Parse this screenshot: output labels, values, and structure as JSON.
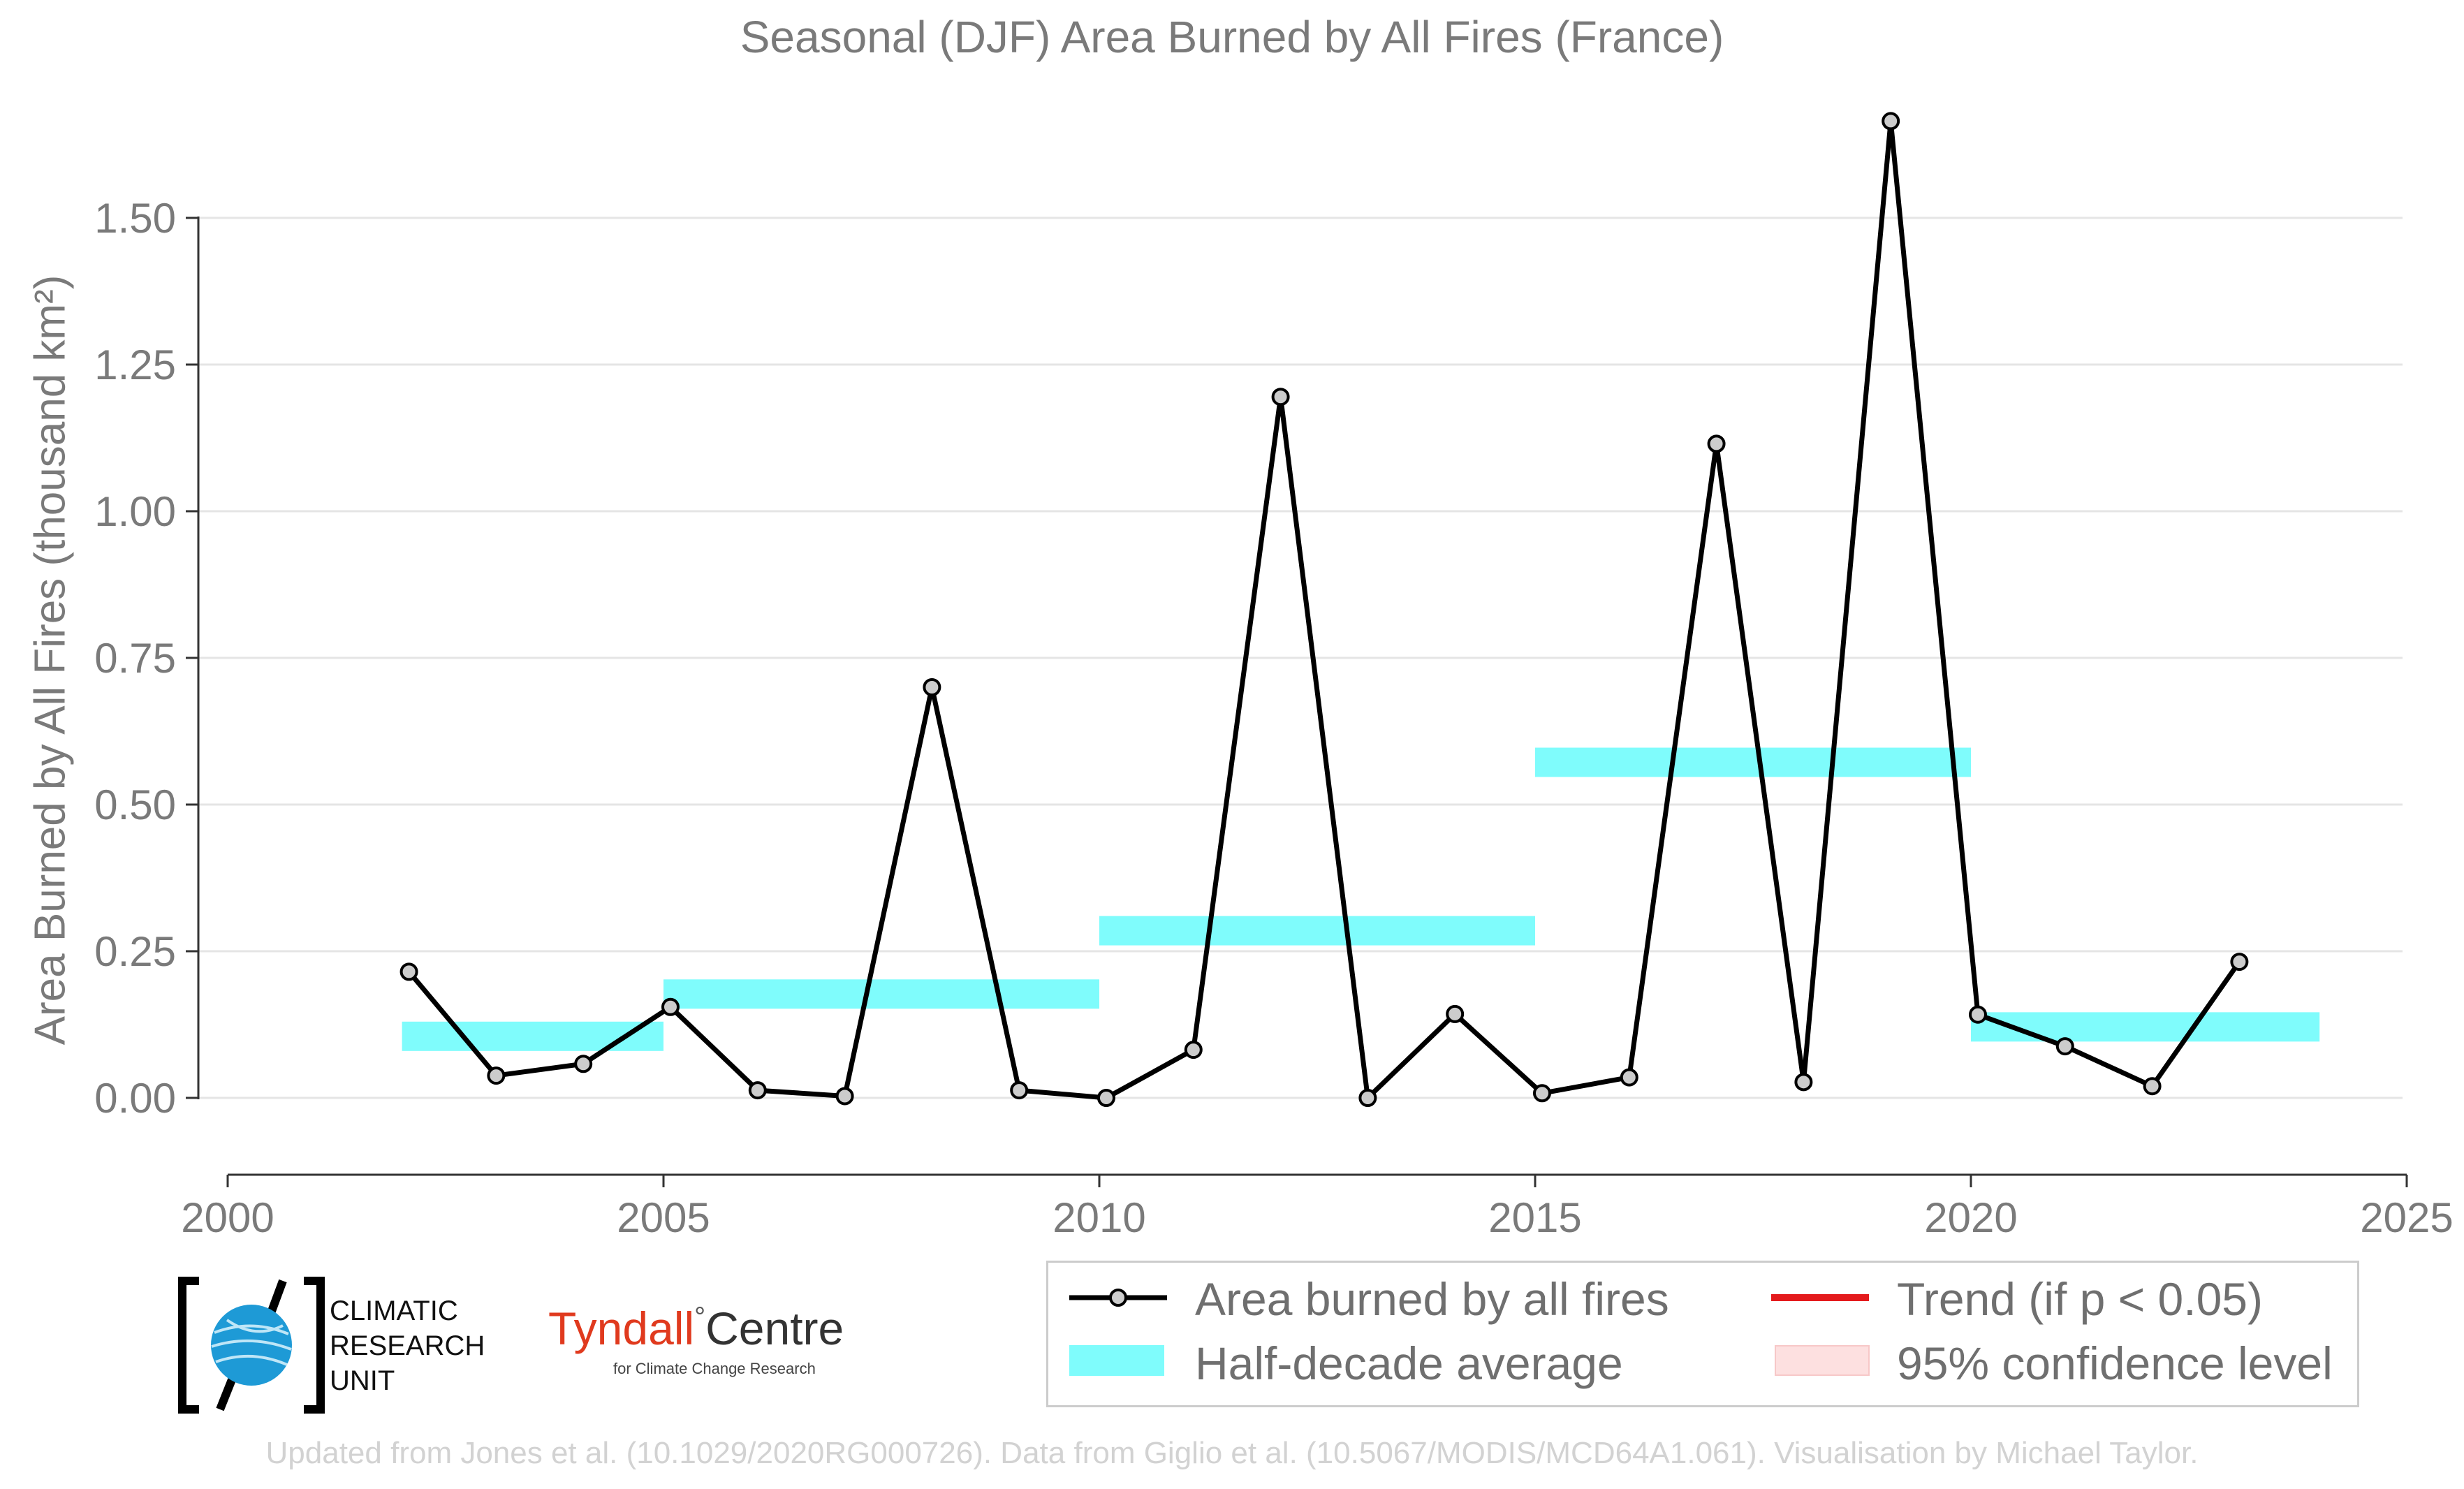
{
  "chart_data": {
    "type": "line",
    "title": "Seasonal (DJF) Area Burned by All Fires (France)",
    "ylabel": "Area Burned by All Fires (thousand km²)",
    "xlabel": "",
    "xlim": [
      2000,
      2025
    ],
    "ylim": [
      -0.13,
      1.72
    ],
    "x_ticks": [
      "2000",
      "2005",
      "2010",
      "2015",
      "2020",
      "2025"
    ],
    "y_ticks": [
      "0.00",
      "0.25",
      "0.50",
      "0.75",
      "1.00",
      "1.25",
      "1.50"
    ],
    "grid": "horizontal",
    "series": [
      {
        "name": "Area burned by all fires",
        "color": "#000000",
        "marker_fill": "#cccccc",
        "x": [
          2002,
          2003,
          2004,
          2005,
          2006,
          2007,
          2008,
          2009,
          2010,
          2011,
          2012,
          2013,
          2014,
          2015,
          2016,
          2017,
          2018,
          2019,
          2020,
          2021,
          2022,
          2023
        ],
        "y": [
          0.215,
          0.038,
          0.058,
          0.155,
          0.013,
          0.003,
          0.7,
          0.013,
          0.0,
          0.082,
          1.195,
          0.0,
          0.143,
          0.008,
          0.035,
          1.115,
          0.027,
          1.665,
          0.142,
          0.088,
          0.02,
          0.232
        ]
      }
    ],
    "half_decade_average": {
      "name": "Half-decade average",
      "color": "#7ffcfc",
      "segments": [
        {
          "x_start": 2002,
          "x_end": 2005,
          "y": 0.105
        },
        {
          "x_start": 2005,
          "x_end": 2010,
          "y": 0.177
        },
        {
          "x_start": 2010,
          "x_end": 2015,
          "y": 0.285
        },
        {
          "x_start": 2015,
          "x_end": 2020,
          "y": 0.572
        },
        {
          "x_start": 2020,
          "x_end": 2024,
          "y": 0.121
        }
      ]
    },
    "legend": {
      "position": "bottom-right",
      "items": [
        {
          "label": "Area burned by all fires",
          "kind": "line-marker",
          "color": "#000000"
        },
        {
          "label": "Trend (if p < 0.05)",
          "kind": "line",
          "color": "#e41a1c"
        },
        {
          "label": "Half-decade average",
          "kind": "band",
          "color": "#7ffcfc"
        },
        {
          "label": "95% confidence level",
          "kind": "band",
          "color": "#fde0e0"
        }
      ]
    }
  },
  "logos": {
    "cru_lines": [
      "CLIMATIC",
      "RESEARCH",
      "UNIT"
    ],
    "tyndall_name": "Tyndall",
    "tyndall_centre": "Centre",
    "tyndall_degree": "°",
    "tyndall_subtitle": "for Climate Change Research"
  },
  "footer": "Updated from Jones et al. (10.1029/2020RG000726). Data from Giglio et al. (10.5067/MODIS/MCD64A1.061). Visualisation by Michael Taylor."
}
